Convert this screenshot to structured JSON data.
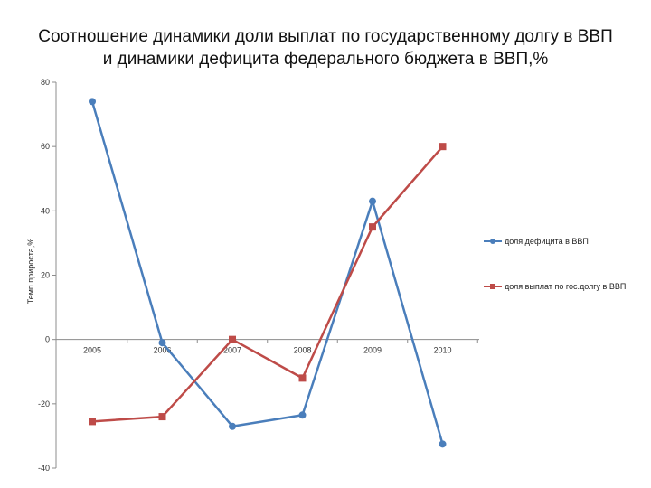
{
  "chart_data": {
    "type": "line",
    "title_lines": [
      "Соотношение динамики доли выплат по государственному долгу в ВВП",
      "и динамики дефицита федерального бюджета в ВВП,%"
    ],
    "xlabel": "",
    "ylabel": "Темп прироста,%",
    "categories": [
      "2005",
      "2006",
      "2007",
      "2008",
      "2009",
      "2010"
    ],
    "ylim": [
      -40,
      80
    ],
    "yticks": [
      "80",
      "60",
      "40",
      "20",
      "0",
      "-20",
      "-40"
    ],
    "grid": false,
    "legend_position": "right",
    "series": [
      {
        "name": "доля дефицита в ВВП",
        "color": "#4a7ebb",
        "marker": "circle",
        "values": [
          74,
          -1,
          -27,
          -23.5,
          43,
          -32.5
        ]
      },
      {
        "name": "доля выплат по гос.долгу в ВВП",
        "color": "#be4b48",
        "marker": "square",
        "values": [
          -25.5,
          -24,
          0,
          -12,
          35,
          60
        ]
      }
    ]
  }
}
